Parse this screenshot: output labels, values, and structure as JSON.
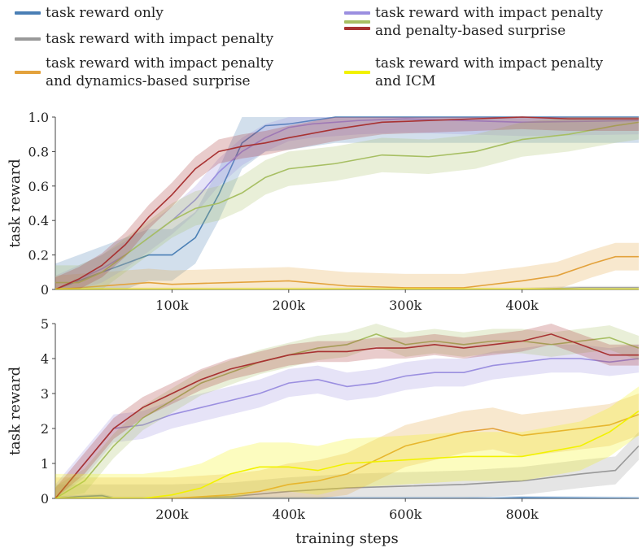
{
  "legend": [
    {
      "label": "task reward only",
      "color": "#4a7fb5"
    },
    {
      "label": "task reward with impact penalty",
      "color": "#999999"
    },
    {
      "label": "task reward with impact penalty\nand dynamics-based surprise",
      "color": "#e3a23c"
    },
    {
      "label": "task reward with impact penalty\nand penalty-based surprise",
      "color": "#9b8fe0",
      "color2": "#b5b060",
      "color3": "#a83232"
    },
    {
      "label": "task reward with impact penalty\nand ICM",
      "color": "#f2f200"
    }
  ],
  "chart_data": [
    {
      "type": "line",
      "ylabel": "task reward",
      "xlabel": "",
      "xlim": [
        0,
        500000
      ],
      "ylim": [
        0,
        1.0
      ],
      "xticks": [
        100000,
        200000,
        300000,
        400000
      ],
      "xtick_labels": [
        "100k",
        "200k",
        "300k",
        "400k"
      ],
      "yticks": [
        0,
        0.2,
        0.4,
        0.6,
        0.8,
        1.0
      ],
      "ytick_labels": [
        "0",
        "0.2",
        "0.4",
        "0.6",
        "0.8",
        "1.0"
      ],
      "series": [
        {
          "name": "task reward only",
          "color": "#4a7fb5",
          "x": [
            0,
            20000,
            40000,
            60000,
            80000,
            100000,
            120000,
            140000,
            160000,
            180000,
            200000,
            220000,
            240000,
            300000,
            400000,
            500000
          ],
          "y": [
            0,
            0.05,
            0.1,
            0.15,
            0.2,
            0.2,
            0.3,
            0.55,
            0.85,
            0.95,
            0.96,
            0.98,
            1.0,
            1.0,
            1.0,
            1.0
          ],
          "band": 0.15
        },
        {
          "name": "task reward with impact penalty",
          "color": "#999999",
          "x": [
            0,
            100000,
            200000,
            300000,
            400000,
            450000,
            500000
          ],
          "y": [
            0,
            0,
            0,
            0,
            0,
            0.01,
            0.01
          ],
          "band": 0.01
        },
        {
          "name": "task reward with impact penalty and dynamics-based surprise",
          "color": "#e3a23c",
          "x": [
            0,
            20000,
            40000,
            60000,
            80000,
            100000,
            150000,
            200000,
            250000,
            300000,
            350000,
            400000,
            430000,
            460000,
            480000,
            500000
          ],
          "y": [
            0,
            0.01,
            0.02,
            0.03,
            0.04,
            0.03,
            0.04,
            0.05,
            0.02,
            0.01,
            0.01,
            0.05,
            0.08,
            0.15,
            0.19,
            0.19
          ],
          "band": 0.08
        },
        {
          "name": "penalty-based surprise (purple)",
          "color": "#9b8fe0",
          "x": [
            0,
            20000,
            40000,
            60000,
            80000,
            100000,
            120000,
            140000,
            160000,
            180000,
            200000,
            220000,
            260000,
            300000,
            400000,
            500000
          ],
          "y": [
            0,
            0.06,
            0.12,
            0.2,
            0.3,
            0.4,
            0.52,
            0.68,
            0.8,
            0.88,
            0.94,
            0.96,
            0.98,
            0.99,
            0.97,
            0.98
          ],
          "band": 0.08
        },
        {
          "name": "penalty-based surprise (green)",
          "color": "#a7bf63",
          "x": [
            0,
            20000,
            40000,
            60000,
            80000,
            100000,
            120000,
            140000,
            160000,
            180000,
            200000,
            240000,
            280000,
            320000,
            360000,
            400000,
            440000,
            480000,
            500000
          ],
          "y": [
            0.04,
            0.04,
            0.1,
            0.2,
            0.3,
            0.4,
            0.47,
            0.5,
            0.56,
            0.65,
            0.7,
            0.73,
            0.78,
            0.77,
            0.8,
            0.87,
            0.9,
            0.95,
            0.97
          ],
          "band": 0.1
        },
        {
          "name": "penalty-based surprise (red)",
          "color": "#a83232",
          "x": [
            0,
            20000,
            40000,
            60000,
            80000,
            100000,
            120000,
            140000,
            160000,
            180000,
            200000,
            240000,
            280000,
            320000,
            360000,
            400000,
            440000,
            480000,
            500000
          ],
          "y": [
            0,
            0.06,
            0.14,
            0.26,
            0.42,
            0.55,
            0.7,
            0.8,
            0.83,
            0.85,
            0.88,
            0.93,
            0.97,
            0.98,
            0.99,
            1.0,
            0.99,
            0.99,
            0.99
          ],
          "band": 0.07
        },
        {
          "name": "task reward with impact penalty and ICM",
          "color": "#f2f200",
          "x": [
            0,
            100000,
            200000,
            300000,
            400000,
            450000,
            500000
          ],
          "y": [
            0,
            0,
            0,
            0,
            0,
            0.0,
            0.0
          ],
          "band": 0.01
        }
      ]
    },
    {
      "type": "line",
      "ylabel": "task reward",
      "xlabel": "training steps",
      "xlim": [
        0,
        1000000
      ],
      "ylim": [
        0,
        5
      ],
      "xticks": [
        200000,
        400000,
        600000,
        800000
      ],
      "xtick_labels": [
        "200k",
        "400k",
        "600k",
        "800k"
      ],
      "yticks": [
        0,
        1,
        2,
        3,
        4,
        5
      ],
      "ytick_labels": [
        "0",
        "1",
        "2",
        "3",
        "4",
        "5"
      ],
      "series": [
        {
          "name": "task reward only",
          "color": "#4a7fb5",
          "x": [
            0,
            40000,
            80000,
            100000,
            200000,
            600000,
            750000,
            800000,
            1000000
          ],
          "y": [
            0,
            0.05,
            0.08,
            0,
            0,
            0,
            0,
            0.02,
            0
          ],
          "band": 0.05
        },
        {
          "name": "task reward with impact penalty",
          "color": "#999999",
          "x": [
            0,
            200000,
            300000,
            400000,
            500000,
            600000,
            700000,
            800000,
            900000,
            960000,
            1000000
          ],
          "y": [
            0,
            0,
            0.05,
            0.2,
            0.3,
            0.35,
            0.4,
            0.5,
            0.7,
            0.8,
            1.5
          ],
          "band": 0.4
        },
        {
          "name": "task reward with impact penalty and dynamics-based surprise",
          "color": "#e3a23c",
          "x": [
            0,
            200000,
            300000,
            350000,
            400000,
            450000,
            500000,
            550000,
            600000,
            650000,
            700000,
            750000,
            800000,
            850000,
            900000,
            950000,
            1000000
          ],
          "y": [
            0,
            0,
            0.1,
            0.2,
            0.4,
            0.5,
            0.7,
            1.1,
            1.5,
            1.7,
            1.9,
            2.0,
            1.8,
            1.9,
            2.0,
            2.1,
            2.4
          ],
          "band": 0.6
        },
        {
          "name": "penalty-based surprise (purple)",
          "color": "#9b8fe0",
          "x": [
            0,
            50000,
            100000,
            150000,
            200000,
            250000,
            300000,
            350000,
            400000,
            450000,
            500000,
            550000,
            600000,
            650000,
            700000,
            750000,
            800000,
            850000,
            900000,
            950000,
            1000000
          ],
          "y": [
            0,
            1.0,
            2.0,
            2.1,
            2.4,
            2.6,
            2.8,
            3.0,
            3.3,
            3.4,
            3.2,
            3.3,
            3.5,
            3.6,
            3.6,
            3.8,
            3.9,
            4.0,
            4.0,
            3.9,
            4.0
          ],
          "band": 0.4
        },
        {
          "name": "penalty-based surprise (green)",
          "color": "#a7bf63",
          "x": [
            0,
            50000,
            100000,
            150000,
            200000,
            250000,
            300000,
            350000,
            400000,
            450000,
            500000,
            550000,
            600000,
            650000,
            700000,
            750000,
            800000,
            850000,
            900000,
            950000,
            1000000
          ],
          "y": [
            0,
            0.5,
            1.5,
            2.3,
            2.8,
            3.3,
            3.6,
            3.9,
            4.1,
            4.3,
            4.4,
            4.7,
            4.4,
            4.5,
            4.4,
            4.5,
            4.5,
            4.4,
            4.5,
            4.6,
            4.3
          ],
          "band": 0.35
        },
        {
          "name": "penalty-based surprise (red)",
          "color": "#a83232",
          "x": [
            0,
            50000,
            100000,
            150000,
            200000,
            250000,
            300000,
            350000,
            400000,
            450000,
            500000,
            550000,
            600000,
            650000,
            700000,
            750000,
            800000,
            850000,
            900000,
            950000,
            1000000
          ],
          "y": [
            0,
            1.0,
            2.0,
            2.6,
            3.0,
            3.4,
            3.7,
            3.9,
            4.1,
            4.2,
            4.2,
            4.3,
            4.3,
            4.4,
            4.3,
            4.4,
            4.5,
            4.7,
            4.4,
            4.1,
            4.1
          ],
          "band": 0.3
        },
        {
          "name": "task reward with impact penalty and ICM",
          "color": "#f2f200",
          "x": [
            0,
            150000,
            200000,
            250000,
            300000,
            350000,
            400000,
            450000,
            500000,
            600000,
            700000,
            800000,
            900000,
            950000,
            1000000
          ],
          "y": [
            0,
            0,
            0.1,
            0.3,
            0.7,
            0.9,
            0.9,
            0.8,
            1.0,
            1.1,
            1.2,
            1.2,
            1.5,
            1.9,
            2.5
          ],
          "band": 0.7
        }
      ]
    }
  ]
}
